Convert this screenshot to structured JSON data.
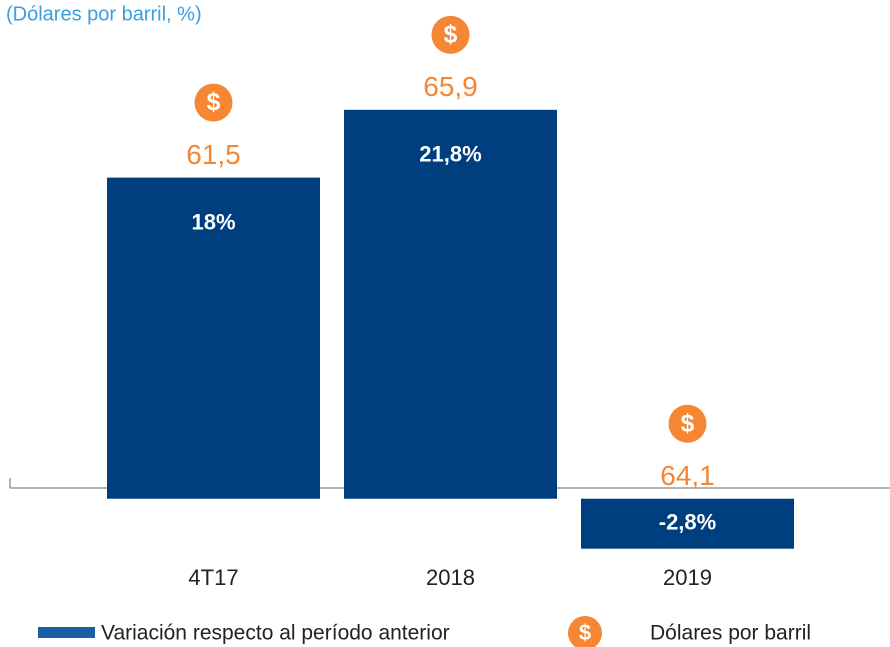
{
  "chart_data": {
    "type": "bar",
    "title": "(Dólares por barril, %)",
    "categories": [
      "4T17",
      "2018",
      "2019"
    ],
    "series": [
      {
        "name": "Variación respecto al período anterior",
        "color": "#003f7f",
        "legend_color": "#1a5ea8",
        "values": [
          18,
          21.8,
          -2.8
        ],
        "value_labels": [
          "18%",
          "21,8%",
          "-2,8%"
        ]
      },
      {
        "name": "Dólares por barril",
        "color": "#f58634",
        "values": [
          61.5,
          65.9,
          64.1
        ],
        "value_labels": [
          "61,5",
          "65,9",
          "64,1"
        ],
        "icon": "$"
      }
    ],
    "ylim": [
      -4.5,
      27.9
    ]
  }
}
